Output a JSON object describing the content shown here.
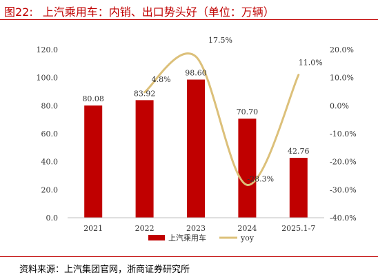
{
  "header": {
    "figure_label": "图22:",
    "title": "上汽乘用车：内销、出口势头好（单位：万辆）"
  },
  "footer": {
    "source": "资料来源：上汽集团官网，浙商证券研究所"
  },
  "chart_data": {
    "type": "bar",
    "categories": [
      "2021",
      "2022",
      "2023",
      "2024",
      "2025.1-7"
    ],
    "series": [
      {
        "name": "上汽乘用车",
        "kind": "bar",
        "axis": "left",
        "values": [
          80.08,
          83.92,
          98.6,
          70.7,
          42.76
        ],
        "labels": [
          "80.08",
          "83.92",
          "98.60",
          "70.70",
          "42.76"
        ]
      },
      {
        "name": "yoy",
        "kind": "line",
        "axis": "right",
        "values": [
          null,
          4.8,
          17.5,
          -28.3,
          11.0
        ],
        "labels": [
          "",
          "4.8%",
          "17.5%",
          "-28.3%",
          "11.0%"
        ]
      }
    ],
    "y_left": {
      "min": 0,
      "max": 120,
      "ticks": [
        "0.0",
        "20.0",
        "40.0",
        "60.0",
        "80.0",
        "100.0",
        "120.0"
      ]
    },
    "y_right": {
      "min": -40,
      "max": 20,
      "ticks": [
        "-40.0%",
        "-30.0%",
        "-20.0%",
        "-10.0%",
        "0.0%",
        "10.0%",
        "20.0%"
      ]
    },
    "legend_position": "bottom",
    "grid": false,
    "colors": {
      "bar": "#c00000",
      "line": "#dcc07a",
      "title": "#c00000"
    }
  }
}
